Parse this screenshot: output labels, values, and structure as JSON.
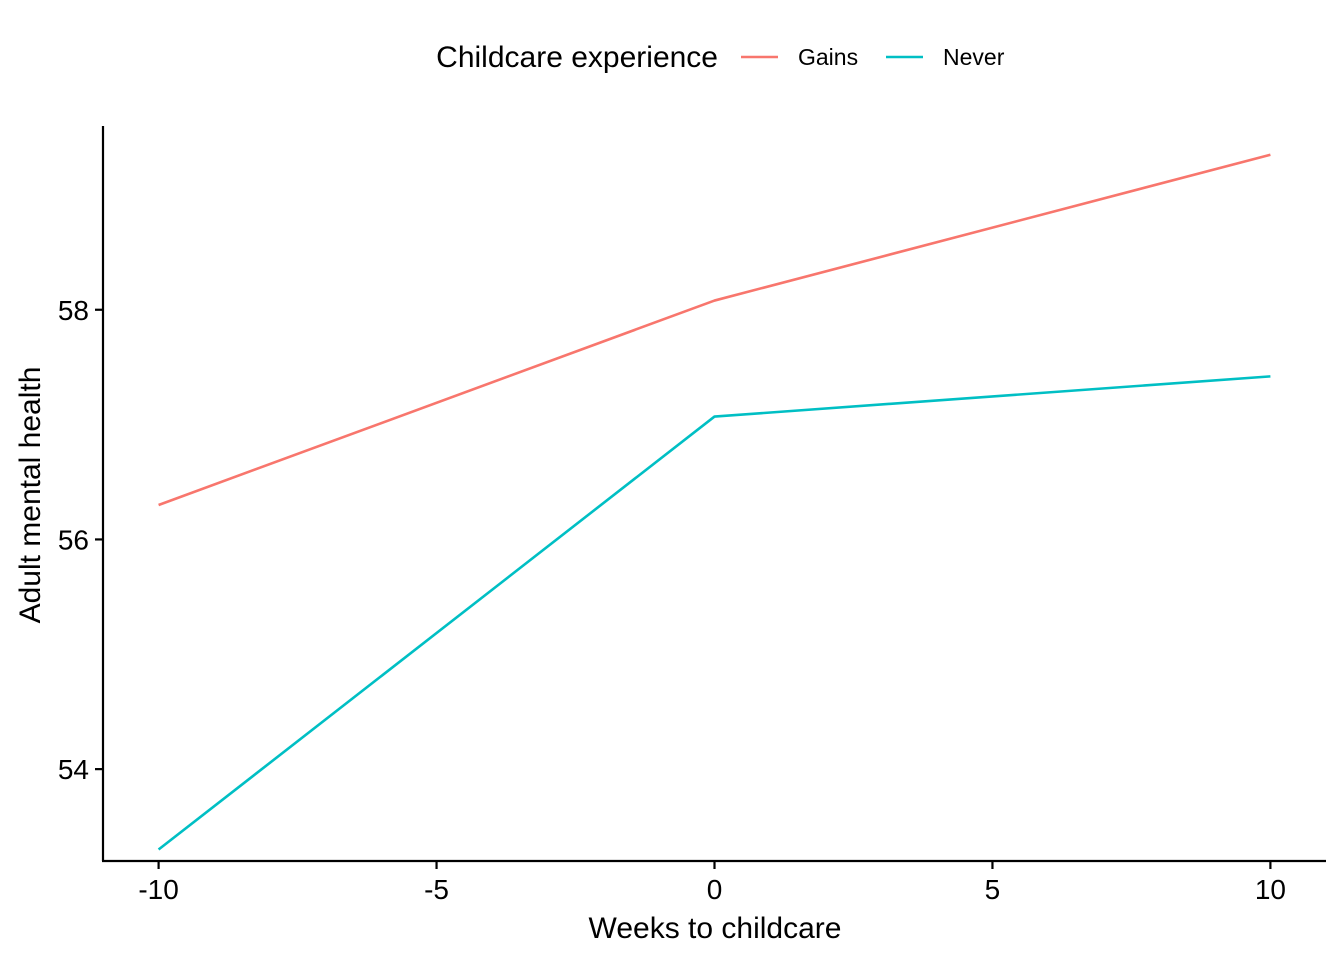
{
  "chart_data": {
    "type": "line",
    "xlabel": "Weeks to childcare",
    "ylabel": "Adult mental health",
    "legend_title": "Childcare experience",
    "legend_position": "top",
    "grid": false,
    "xlim": [
      -11,
      11
    ],
    "ylim": [
      53.2,
      59.6
    ],
    "x_ticks": [
      -10,
      -5,
      0,
      5,
      10
    ],
    "x_tick_labels": [
      "-10",
      "-5",
      "0",
      "5",
      "10"
    ],
    "y_ticks": [
      54,
      56,
      58
    ],
    "y_tick_labels": [
      "54",
      "56",
      "58"
    ],
    "x": [
      -10,
      0,
      10
    ],
    "series": [
      {
        "name": "Gains",
        "color": "#F8766D",
        "values": [
          56.3,
          58.08,
          59.35
        ]
      },
      {
        "name": "Never",
        "color": "#00BFC4",
        "values": [
          53.3,
          57.07,
          57.42
        ]
      }
    ]
  }
}
